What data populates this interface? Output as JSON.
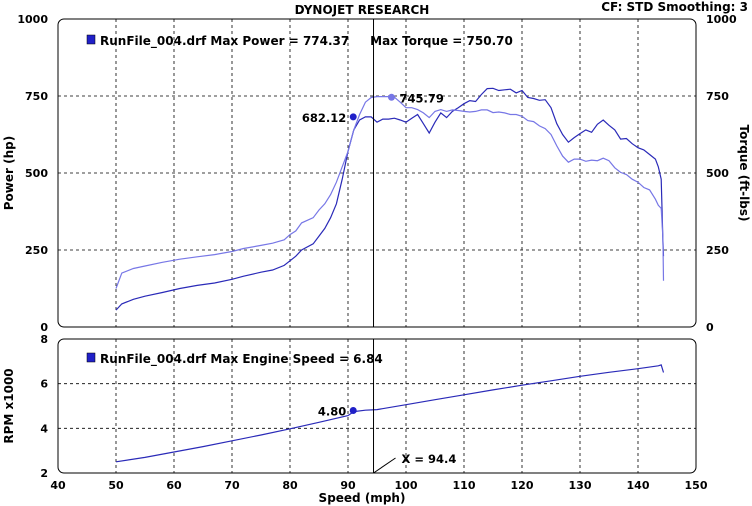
{
  "header": {
    "title": "DYNOJET RESEARCH",
    "settings": "CF: STD   Smoothing: 3"
  },
  "colors": {
    "power": "#2a2ab8",
    "torque": "#7777e6",
    "rpm": "#2a2ab8",
    "marker": "#2020c8",
    "grid": "#000000",
    "background": "#ffffff"
  },
  "chart_data": [
    {
      "type": "line",
      "panel": "power-torque",
      "legend": "RunFile_004.drf Max Power = 774.37     Max Torque = 750.70",
      "ylabel": "Power (hp)",
      "y2label": "Torque (ft-lbs)",
      "xlim": [
        40,
        150
      ],
      "ylim": [
        0,
        1000
      ],
      "yticks": [
        0,
        250,
        500,
        750,
        1000
      ],
      "y2ticks": [
        0,
        250,
        500,
        750,
        1000
      ],
      "grid": true,
      "cursor_x": 94.4,
      "annotations": [
        {
          "label": "682.12",
          "x": 90.9,
          "y": 682.12,
          "series": "power"
        },
        {
          "label": "745.79",
          "x": 97.5,
          "y": 745.79,
          "series": "torque"
        }
      ],
      "series": [
        {
          "key": "power",
          "points": [
            [
              50,
              55
            ],
            [
              51,
              75
            ],
            [
              53,
              90
            ],
            [
              55,
              100
            ],
            [
              58,
              112
            ],
            [
              61,
              125
            ],
            [
              64,
              135
            ],
            [
              67,
              143
            ],
            [
              70,
              155
            ],
            [
              72,
              165
            ],
            [
              75,
              178
            ],
            [
              77,
              185
            ],
            [
              79,
              200
            ],
            [
              80,
              215
            ],
            [
              81,
              230
            ],
            [
              82,
              250
            ],
            [
              84,
              270
            ],
            [
              85,
              295
            ],
            [
              86,
              320
            ],
            [
              87,
              355
            ],
            [
              88,
              400
            ],
            [
              89,
              480
            ],
            [
              90,
              570
            ],
            [
              91,
              640
            ],
            [
              92,
              672
            ],
            [
              93,
              682
            ],
            [
              94,
              682
            ],
            [
              95,
              665
            ],
            [
              96,
              675
            ],
            [
              97,
              675
            ],
            [
              98,
              678
            ],
            [
              99,
              672
            ],
            [
              100,
              665
            ],
            [
              101,
              678
            ],
            [
              102,
              690
            ],
            [
              103,
              660
            ],
            [
              104,
              630
            ],
            [
              105,
              665
            ],
            [
              106,
              695
            ],
            [
              107,
              680
            ],
            [
              108,
              700
            ],
            [
              109,
              712
            ],
            [
              110,
              725
            ],
            [
              111,
              735
            ],
            [
              112,
              732
            ],
            [
              113,
              755
            ],
            [
              114,
              774
            ],
            [
              115,
              775
            ],
            [
              116,
              768
            ],
            [
              117,
              770
            ],
            [
              118,
              772
            ],
            [
              119,
              760
            ],
            [
              120,
              768
            ],
            [
              121,
              745
            ],
            [
              122,
              742
            ],
            [
              123,
              736
            ],
            [
              124,
              738
            ],
            [
              125,
              712
            ],
            [
              126,
              660
            ],
            [
              127,
              625
            ],
            [
              128,
              600
            ],
            [
              129,
              615
            ],
            [
              130,
              628
            ],
            [
              131,
              640
            ],
            [
              132,
              632
            ],
            [
              133,
              658
            ],
            [
              134,
              672
            ],
            [
              135,
              655
            ],
            [
              136,
              640
            ],
            [
              137,
              610
            ],
            [
              138,
              612
            ],
            [
              139,
              595
            ],
            [
              140,
              582
            ],
            [
              141,
              575
            ],
            [
              142,
              560
            ],
            [
              143,
              545
            ],
            [
              143.5,
              520
            ],
            [
              144,
              480
            ],
            [
              144.3,
              280
            ],
            [
              144.4,
              230
            ]
          ]
        },
        {
          "key": "torque",
          "points": [
            [
              50,
              125
            ],
            [
              51,
              175
            ],
            [
              53,
              190
            ],
            [
              55,
              198
            ],
            [
              58,
              210
            ],
            [
              61,
              220
            ],
            [
              64,
              228
            ],
            [
              67,
              235
            ],
            [
              70,
              245
            ],
            [
              72,
              255
            ],
            [
              75,
              265
            ],
            [
              77,
              272
            ],
            [
              79,
              283
            ],
            [
              80,
              300
            ],
            [
              81,
              312
            ],
            [
              82,
              338
            ],
            [
              84,
              355
            ],
            [
              85,
              380
            ],
            [
              86,
              400
            ],
            [
              87,
              430
            ],
            [
              88,
              470
            ],
            [
              89,
              520
            ],
            [
              90,
              570
            ],
            [
              91,
              640
            ],
            [
              92,
              690
            ],
            [
              93,
              730
            ],
            [
              94,
              745
            ],
            [
              95,
              748
            ],
            [
              96,
              748
            ],
            [
              97,
              748
            ],
            [
              98,
              746
            ],
            [
              99,
              730
            ],
            [
              100,
              712
            ],
            [
              101,
              712
            ],
            [
              102,
              706
            ],
            [
              103,
              695
            ],
            [
              104,
              680
            ],
            [
              105,
              700
            ],
            [
              106,
              706
            ],
            [
              107,
              700
            ],
            [
              108,
              705
            ],
            [
              109,
              703
            ],
            [
              110,
              700
            ],
            [
              111,
              698
            ],
            [
              112,
              700
            ],
            [
              113,
              705
            ],
            [
              114,
              705
            ],
            [
              115,
              696
            ],
            [
              116,
              698
            ],
            [
              117,
              695
            ],
            [
              118,
              690
            ],
            [
              119,
              690
            ],
            [
              120,
              684
            ],
            [
              121,
              670
            ],
            [
              122,
              667
            ],
            [
              123,
              653
            ],
            [
              124,
              644
            ],
            [
              125,
              625
            ],
            [
              126,
              588
            ],
            [
              127,
              555
            ],
            [
              128,
              535
            ],
            [
              129,
              545
            ],
            [
              130,
              545
            ],
            [
              131,
              538
            ],
            [
              132,
              542
            ],
            [
              133,
              540
            ],
            [
              134,
              548
            ],
            [
              135,
              540
            ],
            [
              136,
              517
            ],
            [
              137,
              502
            ],
            [
              138,
              495
            ],
            [
              139,
              480
            ],
            [
              140,
              470
            ],
            [
              141,
              453
            ],
            [
              142,
              445
            ],
            [
              143,
              415
            ],
            [
              143.5,
              395
            ],
            [
              144,
              385
            ],
            [
              144.3,
              290
            ],
            [
              144.4,
              150
            ]
          ]
        }
      ]
    },
    {
      "type": "line",
      "panel": "rpm",
      "legend": "RunFile_004.drf Max Engine Speed = 6.84",
      "ylabel": "RPM x1000",
      "xlabel": "Speed (mph)",
      "xlim": [
        40,
        150
      ],
      "ylim": [
        2,
        8
      ],
      "xticks": [
        40,
        50,
        60,
        70,
        80,
        90,
        100,
        110,
        120,
        130,
        140,
        150
      ],
      "yticks": [
        2,
        4,
        6,
        8
      ],
      "grid": true,
      "cursor_x": 94.4,
      "cursor_label": "X = 94.4",
      "annotations": [
        {
          "label": "4.80",
          "x": 90.9,
          "y": 4.8,
          "series": "rpm"
        }
      ],
      "series": [
        {
          "key": "rpm",
          "points": [
            [
              50,
              2.5
            ],
            [
              55,
              2.7
            ],
            [
              60,
              2.94
            ],
            [
              65,
              3.18
            ],
            [
              70,
              3.44
            ],
            [
              75,
              3.7
            ],
            [
              80,
              3.98
            ],
            [
              85,
              4.27
            ],
            [
              90,
              4.57
            ],
            [
              91,
              4.75
            ],
            [
              93,
              4.81
            ],
            [
              95,
              4.84
            ],
            [
              100,
              5.06
            ],
            [
              105,
              5.28
            ],
            [
              110,
              5.5
            ],
            [
              115,
              5.72
            ],
            [
              120,
              5.93
            ],
            [
              125,
              6.13
            ],
            [
              130,
              6.33
            ],
            [
              135,
              6.51
            ],
            [
              140,
              6.67
            ],
            [
              143.5,
              6.8
            ],
            [
              144,
              6.84
            ],
            [
              144.4,
              6.5
            ]
          ]
        }
      ]
    }
  ]
}
